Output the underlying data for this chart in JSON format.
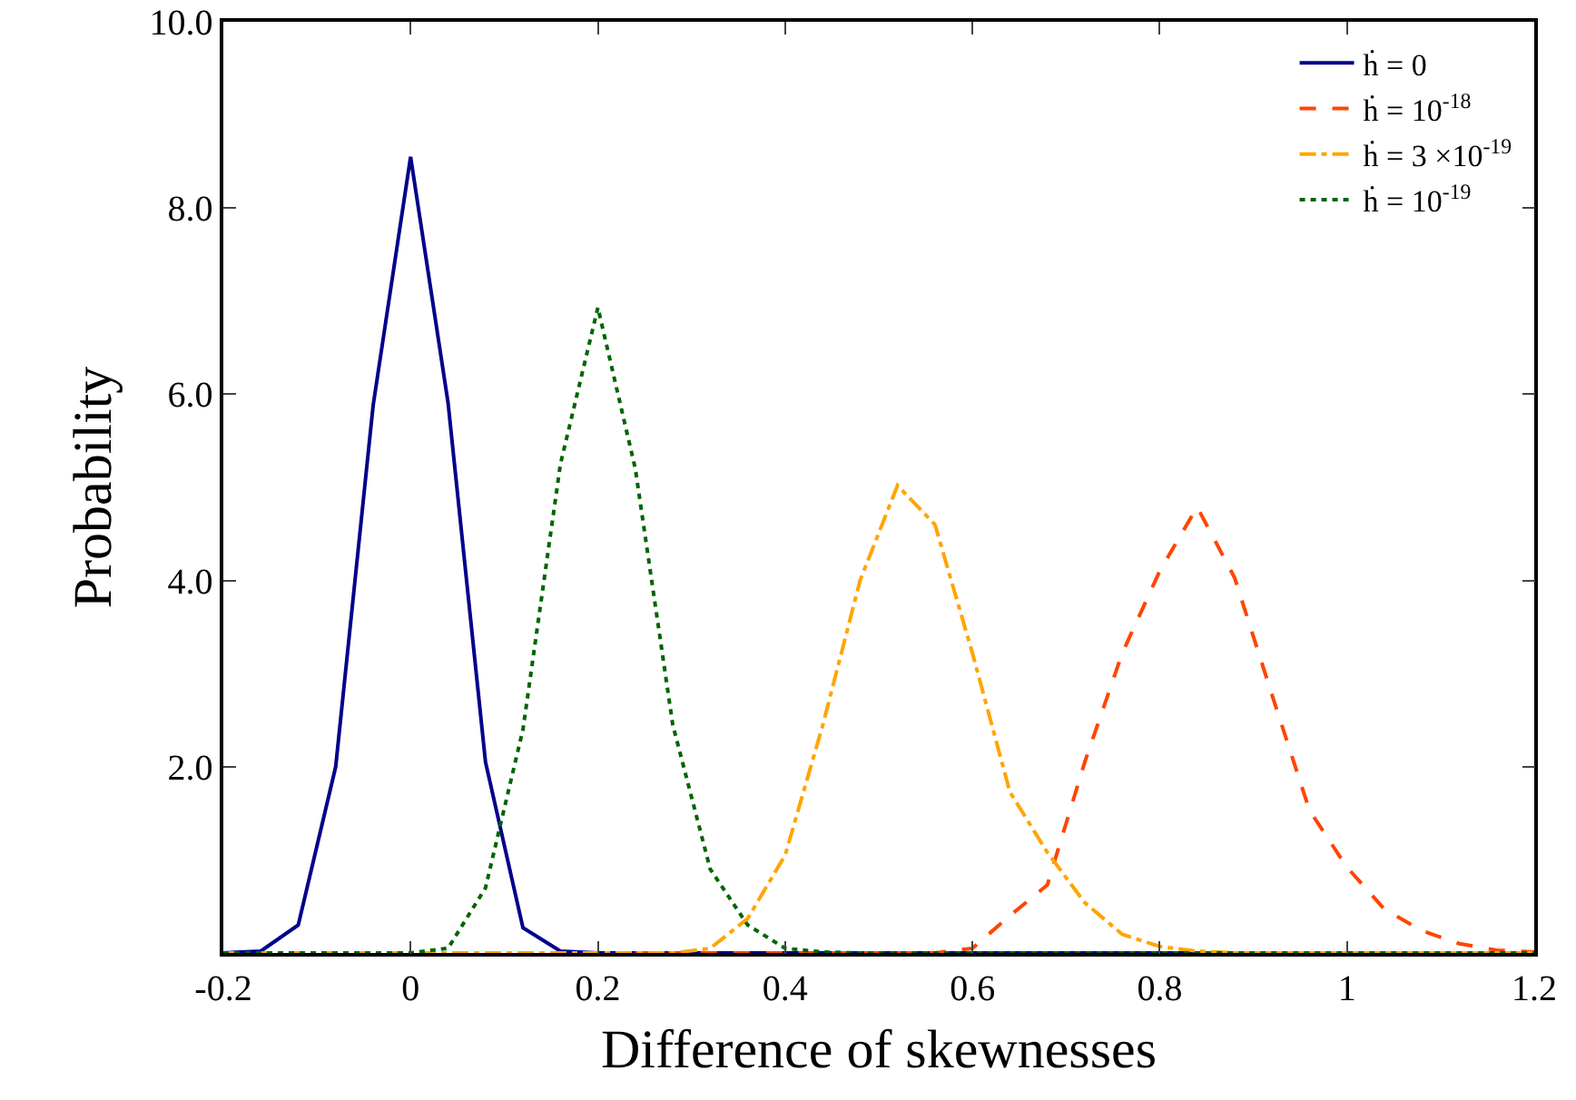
{
  "chart_data": {
    "type": "line",
    "xlabel": "Difference of skewnesses",
    "ylabel": "Probability",
    "x": [
      -0.2,
      -0.16,
      -0.12,
      -0.08,
      -0.04,
      0,
      0.04,
      0.08,
      0.12,
      0.16,
      0.2,
      0.24,
      0.28,
      0.32,
      0.36,
      0.4,
      0.44,
      0.48,
      0.52,
      0.56,
      0.6,
      0.64,
      0.68,
      0.72,
      0.76,
      0.8,
      0.84,
      0.88,
      0.92,
      0.96,
      1.0,
      1.04,
      1.08,
      1.12,
      1.16,
      1.2
    ],
    "series": [
      {
        "name": "ḣ = 0",
        "color": "#00008b",
        "line_style": "solid",
        "values": [
          0,
          0.02,
          0.3,
          2.0,
          5.88,
          8.55,
          5.91,
          2.05,
          0.27,
          0.02,
          0,
          0,
          0,
          0,
          0,
          0,
          0,
          0,
          0,
          0,
          0,
          0,
          0,
          0,
          0,
          0,
          0,
          0,
          null,
          null,
          null,
          null,
          null,
          null,
          null,
          null
        ]
      },
      {
        "name": "ḣ = 10$^{-18}$",
        "color": "#ff4500",
        "line_style": "dashed",
        "values": [
          null,
          null,
          null,
          null,
          null,
          null,
          null,
          null,
          null,
          null,
          null,
          0,
          0,
          0,
          0,
          0,
          0,
          0,
          0,
          0,
          0.05,
          0.4,
          0.73,
          2.05,
          3.22,
          4.1,
          4.79,
          4.03,
          2.77,
          1.53,
          0.92,
          0.47,
          0.24,
          0.1,
          0.03,
          0.01
        ]
      },
      {
        "name": "ḣ = 3 ×10$^{-19}$",
        "color": "#ffa500",
        "line_style": "dashdot",
        "values": [
          0,
          0,
          0,
          0,
          0,
          0,
          0,
          0,
          0,
          0,
          0,
          0,
          0,
          0.05,
          0.37,
          1.05,
          2.44,
          4.0,
          5.02,
          4.6,
          3.22,
          1.73,
          1.08,
          0.54,
          0.2,
          0.07,
          0.02,
          0,
          0,
          0,
          0,
          0,
          0,
          0,
          0,
          0
        ]
      },
      {
        "name": "ḣ = 10$^{-19}$",
        "color": "#006400",
        "line_style": "dotted",
        "values": [
          0,
          0,
          0,
          0,
          0,
          0,
          0.05,
          0.7,
          2.4,
          5.25,
          6.93,
          5.2,
          2.45,
          0.9,
          0.3,
          0.05,
          0.01,
          0,
          0,
          0,
          0,
          0,
          0,
          0,
          0,
          0,
          0,
          0,
          0,
          0,
          0,
          0,
          0,
          0,
          0,
          0
        ]
      }
    ],
    "xlim": [
      -0.2,
      1.2
    ],
    "xticks": [
      {
        "value": -0.2,
        "label": "-0.2"
      },
      0,
      0.2,
      0.4,
      0.6,
      0.8,
      1,
      1.2
    ],
    "ylim": [
      0,
      10
    ],
    "yticks": [
      {
        "value": 0,
        "label": null
      },
      {
        "value": 2,
        "label": "2.0"
      },
      {
        "value": 4,
        "label": "4.0"
      },
      {
        "value": 6,
        "label": "6.0"
      },
      {
        "value": 8,
        "label": "8.0"
      },
      {
        "value": 10,
        "label": "10.0"
      }
    ],
    "grid": false,
    "legend": "top right",
    "marker": "none"
  }
}
